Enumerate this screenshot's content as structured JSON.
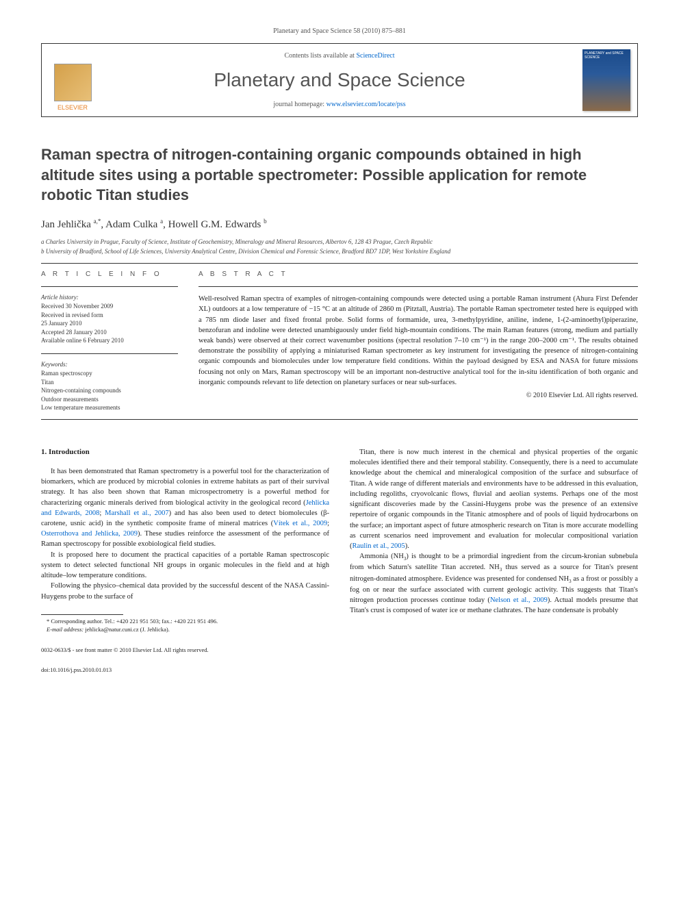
{
  "running_head": "Planetary and Space Science 58 (2010) 875–881",
  "header": {
    "contents_prefix": "Contents lists available at ",
    "contents_link": "ScienceDirect",
    "journal_name": "Planetary and Space Science",
    "homepage_prefix": "journal homepage: ",
    "homepage_link": "www.elsevier.com/locate/pss",
    "publisher": "ELSEVIER",
    "cover_text": "PLANETARY and SPACE SCIENCE"
  },
  "title": "Raman spectra of nitrogen-containing organic compounds obtained in high altitude sites using a portable spectrometer: Possible application for remote robotic Titan studies",
  "authors_html": "Jan Jehlička <sup>a,*</sup>, Adam Culka <sup>a</sup>, Howell G.M. Edwards <sup>b</sup>",
  "affiliations": [
    "a Charles University in Prague, Faculty of Science, Institute of Geochemistry, Mineralogy and Mineral Resources, Albertov 6, 128 43 Prague, Czech Republic",
    "b University of Bradford, School of Life Sciences, University Analytical Centre, Division Chemical and Forensic Science, Bradford BD7 1DP, West Yorkshire England"
  ],
  "article_info": {
    "heading": "A R T I C L E  I N F O",
    "history_label": "Article history:",
    "history": "Received 30 November 2009\nReceived in revised form\n25 January 2010\nAccepted 28 January 2010\nAvailable online 6 February 2010",
    "keywords_label": "Keywords:",
    "keywords": "Raman spectroscopy\nTitan\nNitrogen-containing compounds\nOutdoor measurements\nLow temperature measurements"
  },
  "abstract": {
    "heading": "A B S T R A C T",
    "text": "Well-resolved Raman spectra of examples of nitrogen-containing compounds were detected using a portable Raman instrument (Ahura First Defender XL) outdoors at a low temperature of −15 °C at an altitude of 2860 m (Pitztall, Austria). The portable Raman spectrometer tested here is equipped with a 785 nm diode laser and fixed frontal probe. Solid forms of formamide, urea, 3-methylpyridine, aniline, indene, 1-(2-aminoethyl)piperazine, benzofuran and indoline were detected unambiguously under field high-mountain conditions. The main Raman features (strong, medium and partially weak bands) were observed at their correct wavenumber positions (spectral resolution 7–10 cm⁻¹) in the range 200–2000 cm⁻¹. The results obtained demonstrate the possibility of applying a miniaturised Raman spectrometer as key instrument for investigating the presence of nitrogen-containing organic compounds and biomolecules under low temperature field conditions. Within the payload designed by ESA and NASA for future missions focusing not only on Mars, Raman spectroscopy will be an important non-destructive analytical tool for the in-situ identification of both organic and inorganic compounds relevant to life detection on planetary surfaces or near sub-surfaces.",
    "copyright": "© 2010 Elsevier Ltd. All rights reserved."
  },
  "body": {
    "section_heading": "1. Introduction",
    "col1": [
      "It has been demonstrated that Raman spectrometry is a powerful tool for the characterization of biomarkers, which are produced by microbial colonies in extreme habitats as part of their survival strategy. It has also been shown that Raman microspectrometry is a powerful method for characterizing organic minerals derived from biological activity in the geological record (<span class=\"ref-link\">Jehlicka and Edwards, 2008</span>; <span class=\"ref-link\">Marshall et al., 2007</span>) and has also been used to detect biomolecules (β-carotene, usnic acid) in the synthetic composite frame of mineral matrices (<span class=\"ref-link\">Vítek et al., 2009</span>; <span class=\"ref-link\">Osterrothova and Jehlicka, 2009</span>). These studies reinforce the assessment of the performance of Raman spectroscopy for possible exobiological field studies.",
      "It is proposed here to document the practical capacities of a portable Raman spectroscopic system to detect selected functional NH groups in organic molecules in the field and at high altitude–low temperature conditions.",
      "Following the physico–chemical data provided by the successful descent of the NASA Cassini-Huygens probe to the surface of"
    ],
    "col2": [
      "Titan, there is now much interest in the chemical and physical properties of the organic molecules identified there and their temporal stability. Consequently, there is a need to accumulate knowledge about the chemical and mineralogical composition of the surface and subsurface of Titan. A wide range of different materials and environments have to be addressed in this evaluation, including regoliths, cryovolcanic flows, fluvial and aeolian systems. Perhaps one of the most significant discoveries made by the Cassini-Huygens probe was the presence of an extensive repertoire of organic compounds in the Titanic atmosphere and of pools of liquid hydrocarbons on the surface; an important aspect of future atmospheric research on Titan is more accurate modelling as current scenarios need improvement and evaluation for molecular compositional variation (<span class=\"ref-link\">Raulin et al., 2005</span>).",
      "Ammonia (NH<sub>3</sub>) is thought to be a primordial ingredient from the circum-kronian subnebula from which Saturn's satellite Titan accreted. NH<sub>3</sub> thus served as a source for Titan's present nitrogen-dominated atmosphere. Evidence was presented for condensed NH<sub>3</sub> as a frost or possibly a fog on or near the surface associated with current geologic activity. This suggests that Titan's nitrogen production processes continue today (<span class=\"ref-link\">Nelson et al., 2009</span>). Actual models presume that Titan's crust is composed of water ice or methane clathrates. The haze condensate is probably"
    ]
  },
  "footnote": {
    "corr": "* Corresponding author. Tel.: +420 221 951 503; fax.: +420 221 951 496.",
    "email_label": "E-mail address:",
    "email": "jehlicka@natur.cuni.cz (J. Jehlicka)."
  },
  "footer": {
    "issn": "0032-0633/$ - see front matter © 2010 Elsevier Ltd. All rights reserved.",
    "doi": "doi:10.1016/j.pss.2010.01.013"
  },
  "colors": {
    "link": "#0066cc",
    "text": "#222222",
    "heading_gray": "#555555",
    "elsevier_orange": "#e67e22"
  }
}
